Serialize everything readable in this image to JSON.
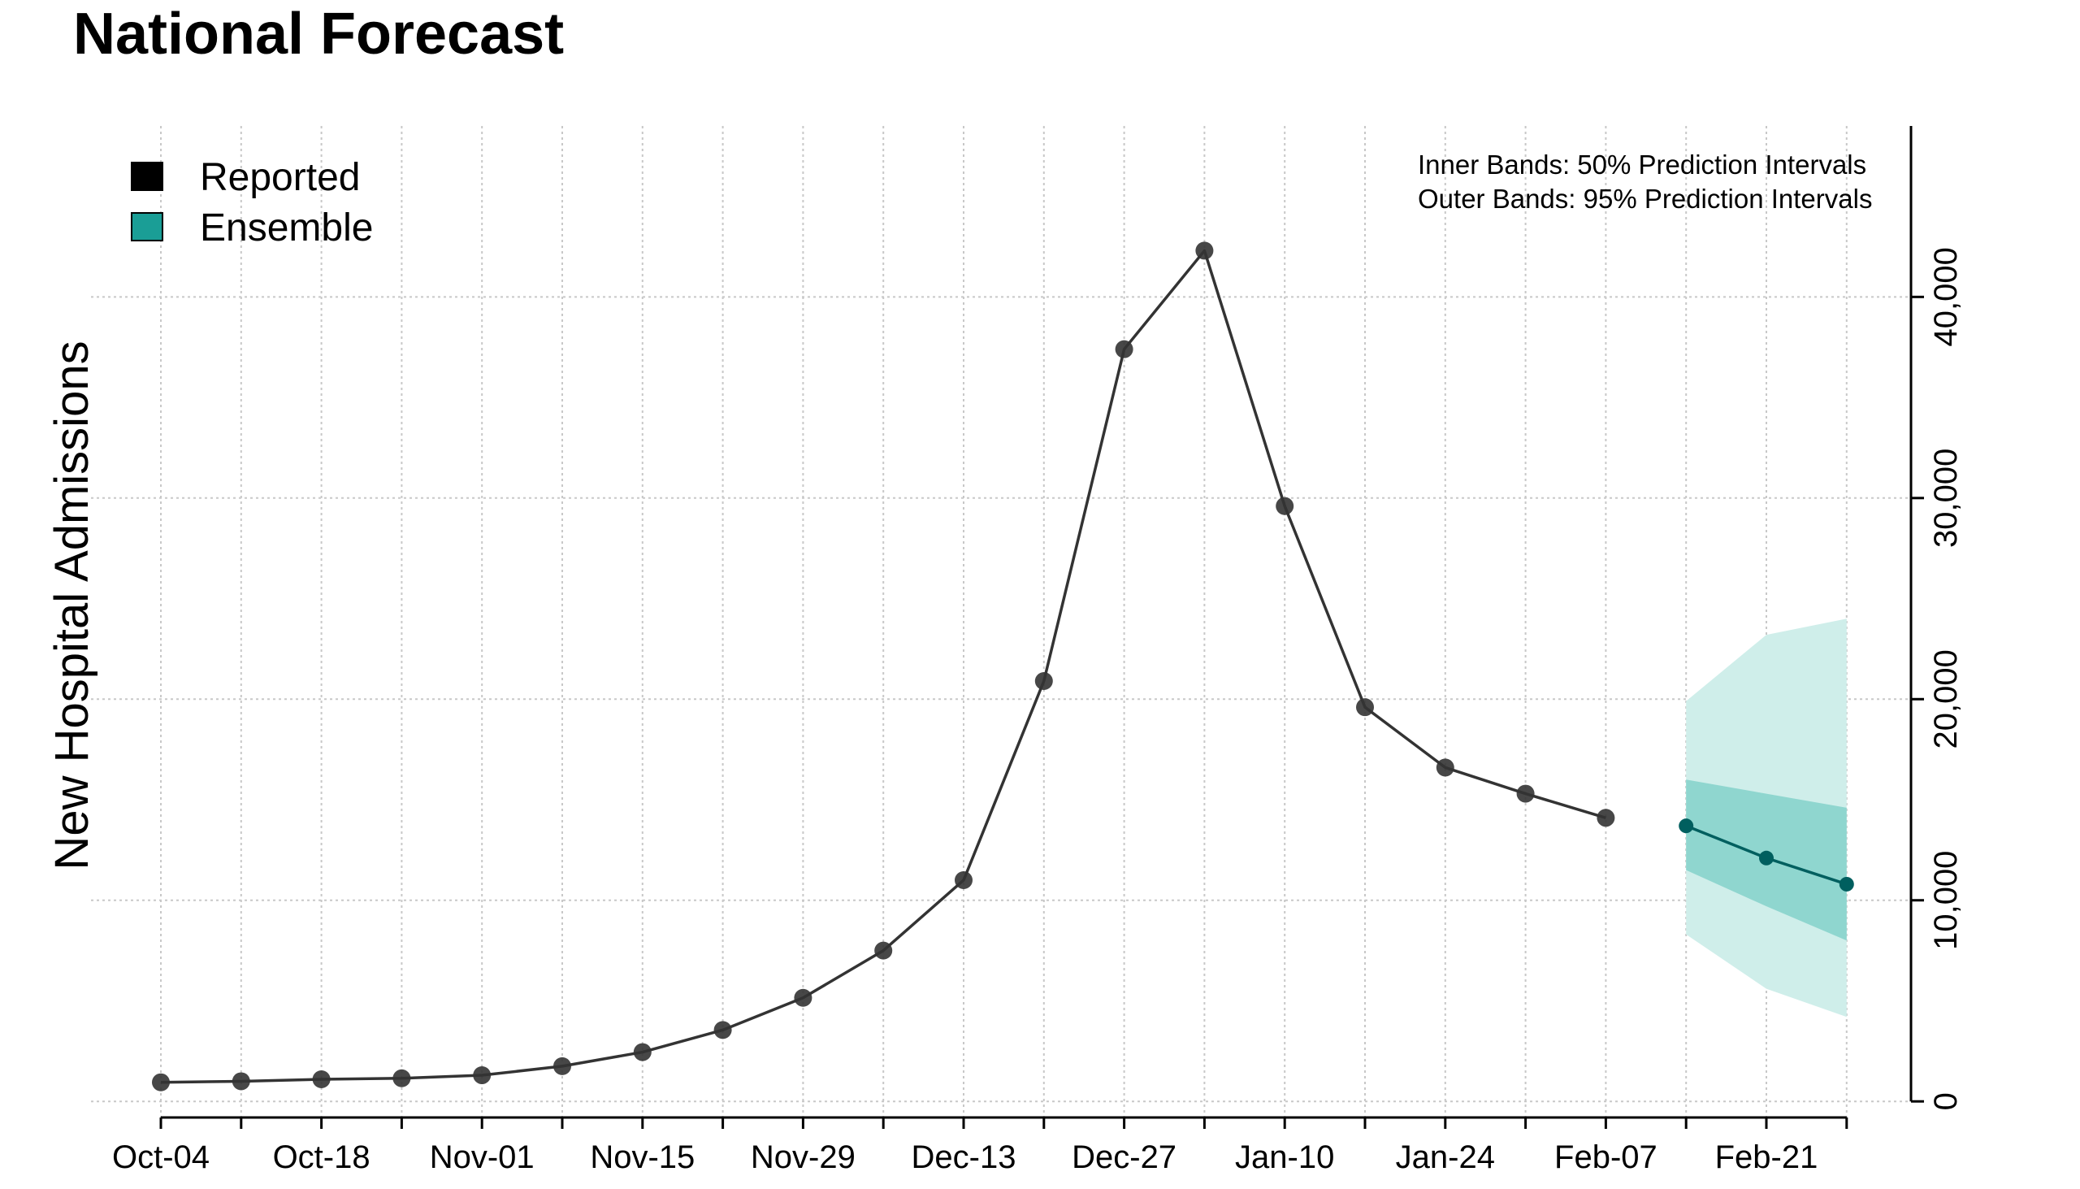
{
  "chart_data": {
    "type": "line",
    "title": "National Forecast",
    "ylabel": "New Hospital Admissions",
    "xlabel": "",
    "ylim": [
      -800,
      48500
    ],
    "y_ticks": [
      0,
      10000,
      20000,
      30000,
      40000
    ],
    "y_tick_labels": [
      "0",
      "10,000",
      "20,000",
      "30,000",
      "40,000"
    ],
    "x_tick_labels": [
      "Oct-04",
      "Oct-18",
      "Nov-01",
      "Nov-15",
      "Nov-29",
      "Dec-13",
      "Dec-27",
      "Jan-10",
      "Jan-24",
      "Feb-07",
      "Feb-21"
    ],
    "x_dates": [
      "Oct-04",
      "Oct-11",
      "Oct-18",
      "Oct-25",
      "Nov-01",
      "Nov-08",
      "Nov-15",
      "Nov-22",
      "Nov-29",
      "Dec-06",
      "Dec-13",
      "Dec-20",
      "Dec-27",
      "Jan-03",
      "Jan-10",
      "Jan-17",
      "Jan-24",
      "Jan-31",
      "Feb-07",
      "Feb-14",
      "Feb-21",
      "Feb-28"
    ],
    "grid": true,
    "y_axis_position": "right",
    "legend": {
      "position": "top-left",
      "items": [
        {
          "label": "Reported",
          "color": "#000000"
        },
        {
          "label": "Ensemble",
          "color": "#1a9e96"
        }
      ]
    },
    "annotations": [
      "Inner Bands: 50% Prediction Intervals",
      "Outer Bands: 95% Prediction Intervals"
    ],
    "series": [
      {
        "name": "Reported",
        "color": "#333333",
        "dates": [
          "Oct-04",
          "Oct-11",
          "Oct-18",
          "Oct-25",
          "Nov-01",
          "Nov-08",
          "Nov-15",
          "Nov-22",
          "Nov-29",
          "Dec-06",
          "Dec-13",
          "Dec-20",
          "Dec-27",
          "Jan-03",
          "Jan-10",
          "Jan-17",
          "Jan-24",
          "Jan-31",
          "Feb-07"
        ],
        "values": [
          950,
          1000,
          1100,
          1150,
          1300,
          1750,
          2450,
          3550,
          5150,
          7500,
          11000,
          20900,
          37400,
          42300,
          29600,
          19600,
          16600,
          15300,
          14100
        ]
      },
      {
        "name": "Ensemble",
        "color": "#005f5f",
        "dates": [
          "Feb-14",
          "Feb-21",
          "Feb-28"
        ],
        "values": [
          13700,
          12100,
          10800
        ],
        "pi50_lower": [
          11500,
          9700,
          8000
        ],
        "pi50_upper": [
          16000,
          15300,
          14600
        ],
        "pi95_lower": [
          8300,
          5600,
          4200
        ],
        "pi95_upper": [
          19900,
          23200,
          24000
        ],
        "pi50_color": "#8fd6cf",
        "pi95_color": "#cfeeea"
      }
    ]
  }
}
